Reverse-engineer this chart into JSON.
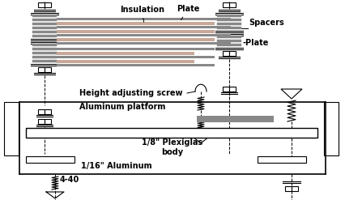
{
  "bg_color": "#ffffff",
  "line_color": "#000000",
  "plate_color": "#c8a898",
  "spacer_color": "#888888",
  "platform_color": "#888888",
  "labels": {
    "insulation": "Insulation",
    "plate_top": "Plate",
    "spacers": "Spacers",
    "plate_bot": "-Plate",
    "height_screw": "Height adjusting screw",
    "alum_platform": "Aluminum platform",
    "plexiglas": "1/8\" Plexiglas\nbody",
    "aluminum": "1/16\" Aluminum",
    "bolt": "4-40"
  },
  "figsize": [
    4.27,
    2.47
  ],
  "dpi": 100
}
